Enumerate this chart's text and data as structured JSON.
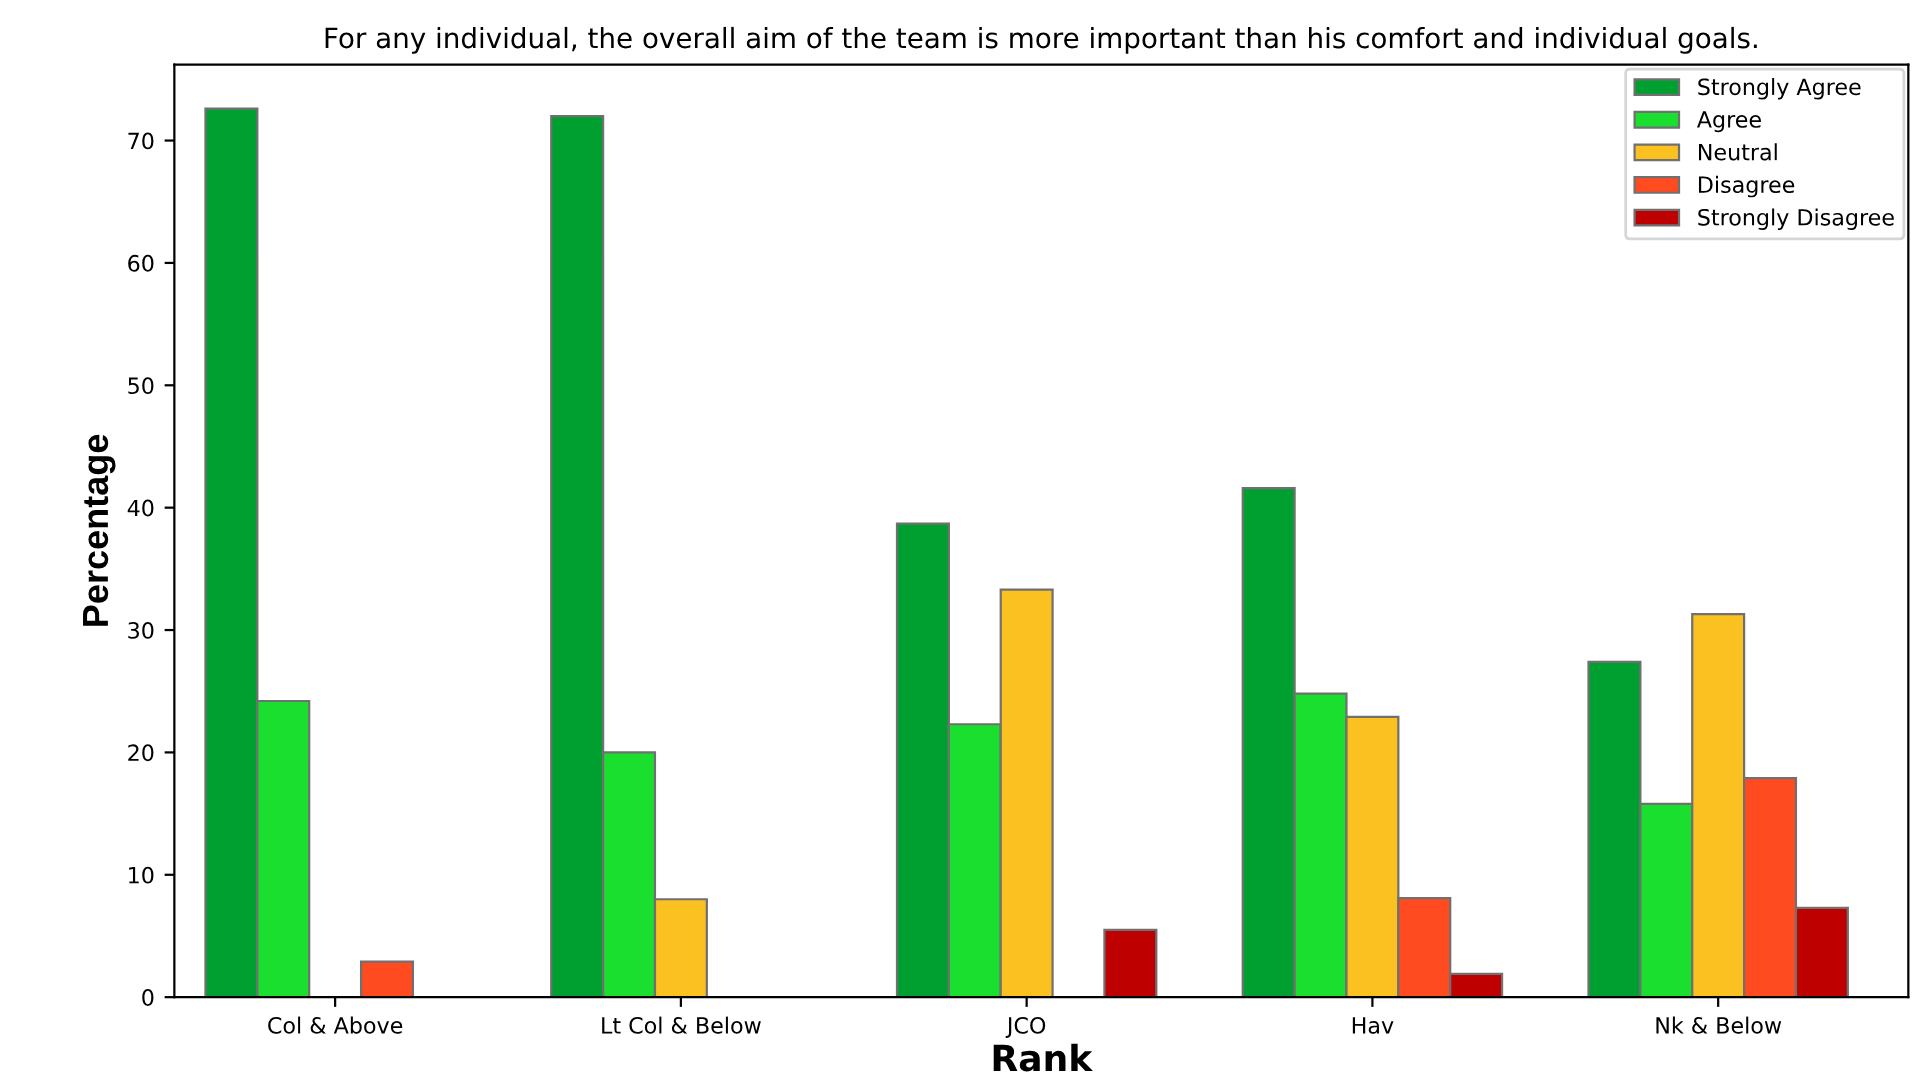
{
  "chart_data": {
    "type": "bar",
    "title": "For any individual, the overall aim of the team is more important than his comfort and individual goals.",
    "xlabel": "Rank",
    "ylabel": "Percentage",
    "categories": [
      "Col & Above",
      "Lt Col & Below",
      "JCO",
      "Hav",
      "Nk & Below"
    ],
    "series": [
      {
        "name": "Strongly Agree",
        "color": "#00a030",
        "values": [
          72.6,
          72.0,
          38.7,
          41.6,
          27.4
        ]
      },
      {
        "name": "Agree",
        "color": "#1adf2e",
        "values": [
          24.2,
          20.0,
          22.3,
          24.8,
          15.8
        ]
      },
      {
        "name": "Neutral",
        "color": "#fbc121",
        "values": [
          null,
          8.0,
          33.3,
          22.9,
          31.3
        ]
      },
      {
        "name": "Disagree",
        "color": "#ff4b1f",
        "values": [
          2.9,
          null,
          null,
          8.1,
          17.9
        ]
      },
      {
        "name": "Strongly Disagree",
        "color": "#bf0000",
        "values": [
          null,
          null,
          5.5,
          1.9,
          7.3
        ]
      }
    ],
    "ylim": [
      0,
      76.2
    ],
    "yticks": [
      0,
      10,
      20,
      30,
      40,
      50,
      60,
      70
    ],
    "grid": false,
    "legend": "top right"
  }
}
